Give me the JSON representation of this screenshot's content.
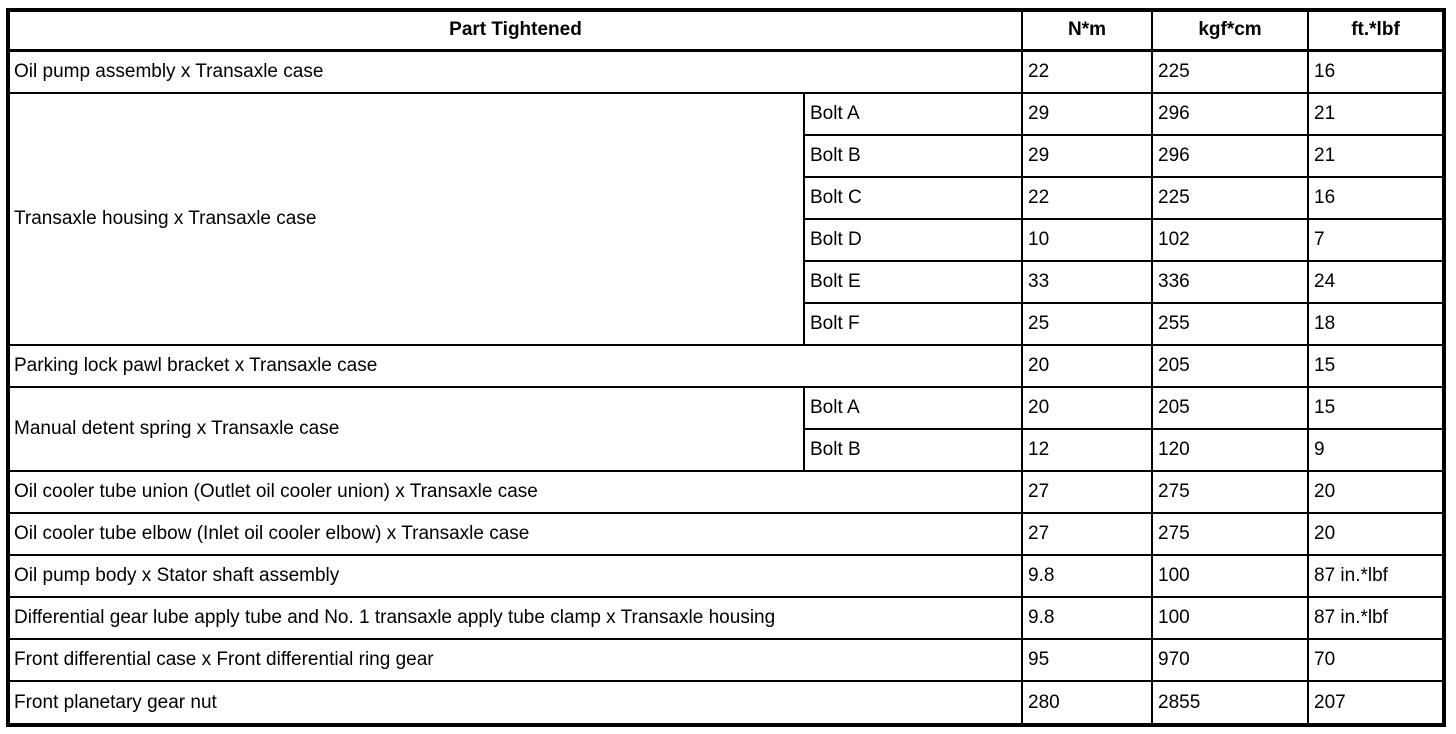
{
  "columns": {
    "part": "Part Tightened",
    "nm": "N*m",
    "kgfcm": "kgf*cm",
    "ftlbf": "ft.*lbf"
  },
  "groups": [
    {
      "part": "Oil pump assembly x Transaxle case",
      "entries": [
        {
          "nm": "22",
          "kgfcm": "225",
          "ftlbf": "16"
        }
      ]
    },
    {
      "part": "Transaxle housing x Transaxle case",
      "entries": [
        {
          "bolt": "Bolt A",
          "nm": "29",
          "kgfcm": "296",
          "ftlbf": "21"
        },
        {
          "bolt": "Bolt B",
          "nm": "29",
          "kgfcm": "296",
          "ftlbf": "21"
        },
        {
          "bolt": "Bolt C",
          "nm": "22",
          "kgfcm": "225",
          "ftlbf": "16"
        },
        {
          "bolt": "Bolt D",
          "nm": "10",
          "kgfcm": "102",
          "ftlbf": "7"
        },
        {
          "bolt": "Bolt E",
          "nm": "33",
          "kgfcm": "336",
          "ftlbf": "24"
        },
        {
          "bolt": "Bolt F",
          "nm": "25",
          "kgfcm": "255",
          "ftlbf": "18"
        }
      ]
    },
    {
      "part": "Parking lock pawl bracket x Transaxle case",
      "entries": [
        {
          "nm": "20",
          "kgfcm": "205",
          "ftlbf": "15"
        }
      ]
    },
    {
      "part": "Manual detent spring x Transaxle case",
      "entries": [
        {
          "bolt": "Bolt A",
          "nm": "20",
          "kgfcm": "205",
          "ftlbf": "15"
        },
        {
          "bolt": "Bolt B",
          "nm": "12",
          "kgfcm": "120",
          "ftlbf": "9"
        }
      ]
    },
    {
      "part": "Oil cooler tube union (Outlet oil cooler union) x Transaxle case",
      "entries": [
        {
          "nm": "27",
          "kgfcm": "275",
          "ftlbf": "20"
        }
      ]
    },
    {
      "part": "Oil cooler tube elbow (Inlet oil cooler elbow) x Transaxle case",
      "entries": [
        {
          "nm": "27",
          "kgfcm": "275",
          "ftlbf": "20"
        }
      ]
    },
    {
      "part": "Oil pump body x Stator shaft assembly",
      "entries": [
        {
          "nm": "9.8",
          "kgfcm": "100",
          "ftlbf": "87 in.*lbf"
        }
      ]
    },
    {
      "part": "Differential gear lube apply tube and No. 1 transaxle apply tube clamp x Transaxle housing",
      "entries": [
        {
          "nm": "9.8",
          "kgfcm": "100",
          "ftlbf": "87 in.*lbf"
        }
      ]
    },
    {
      "part": "Front differential case x Front differential ring gear",
      "entries": [
        {
          "nm": "95",
          "kgfcm": "970",
          "ftlbf": "70"
        }
      ]
    },
    {
      "part": "Front planetary gear nut",
      "entries": [
        {
          "nm": "280",
          "kgfcm": "2855",
          "ftlbf": "207"
        }
      ]
    }
  ]
}
